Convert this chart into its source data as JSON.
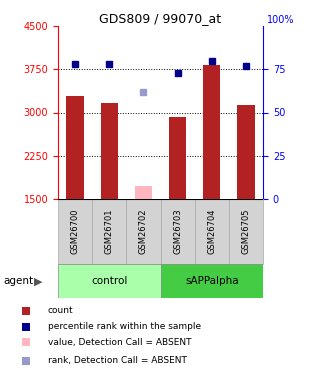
{
  "title": "GDS809 / 99070_at",
  "samples": [
    "GSM26700",
    "GSM26701",
    "GSM26702",
    "GSM26703",
    "GSM26704",
    "GSM26705"
  ],
  "bar_values": [
    3290,
    3170,
    null,
    2920,
    3820,
    3130
  ],
  "bar_absent": [
    null,
    null,
    1720,
    null,
    null,
    null
  ],
  "rank_values": [
    78,
    78,
    null,
    73,
    80,
    77
  ],
  "rank_absent": [
    null,
    null,
    62,
    null,
    null,
    null
  ],
  "ylim_left": [
    1500,
    4500
  ],
  "ylim_right": [
    0,
    100
  ],
  "yticks_left": [
    1500,
    2250,
    3000,
    3750,
    4500
  ],
  "yticks_right": [
    0,
    25,
    50,
    75,
    100
  ],
  "bar_color": "#b22222",
  "bar_absent_color": "#ffb6c1",
  "rank_color": "#00008b",
  "rank_absent_color": "#9999cc",
  "control_color": "#aaffaa",
  "sapp_color": "#44cc44",
  "legend_items": [
    {
      "label": "count",
      "color": "#b22222"
    },
    {
      "label": "percentile rank within the sample",
      "color": "#00008b"
    },
    {
      "label": "value, Detection Call = ABSENT",
      "color": "#ffb6c1"
    },
    {
      "label": "rank, Detection Call = ABSENT",
      "color": "#9999cc"
    }
  ],
  "bar_width": 0.5
}
